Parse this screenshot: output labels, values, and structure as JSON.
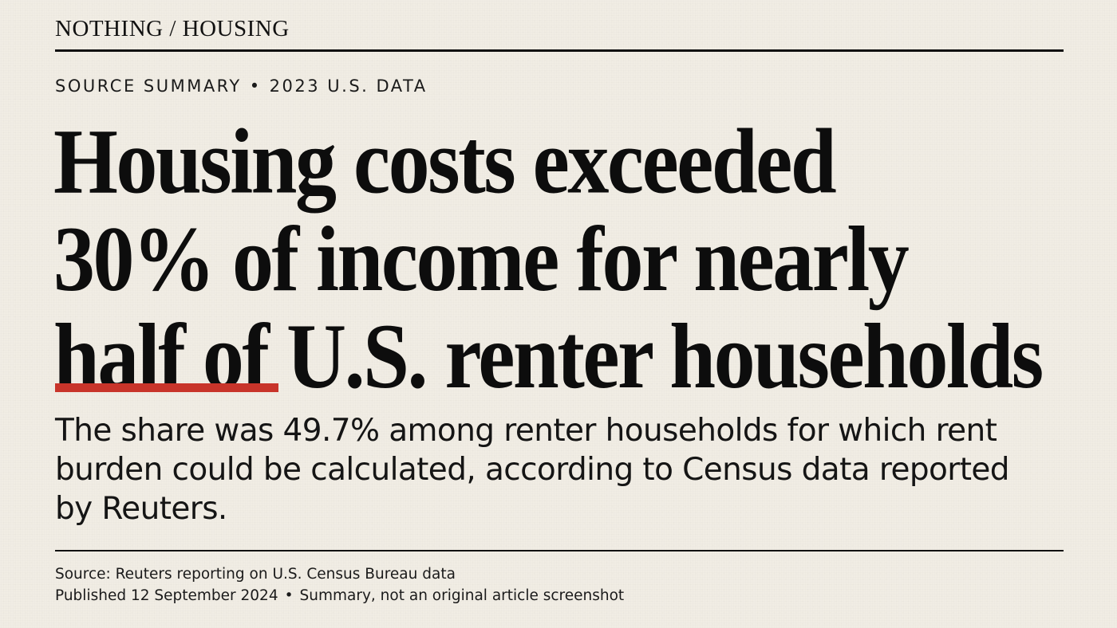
{
  "header": {
    "section_label": "NOTHING / HOUSING"
  },
  "kicker": {
    "label": "SOURCE SUMMARY",
    "separator": "•",
    "data_label": "2023 U.S. DATA"
  },
  "headline": {
    "lines": [
      "Housing costs exceeded",
      "30% of income for nearly",
      "half of U.S. renter households"
    ]
  },
  "accent_color": "#c8342a",
  "dek": {
    "lines": [
      "The share was 49.7% among renter households for which rent",
      "burden could be calculated, according to Census data reported",
      "by Reuters."
    ]
  },
  "footer": {
    "source": "Source: Reuters reporting on U.S. Census Bureau data",
    "published": "Published 12 September 2024",
    "separator": "•",
    "note": "Summary, not an original article screenshot"
  }
}
